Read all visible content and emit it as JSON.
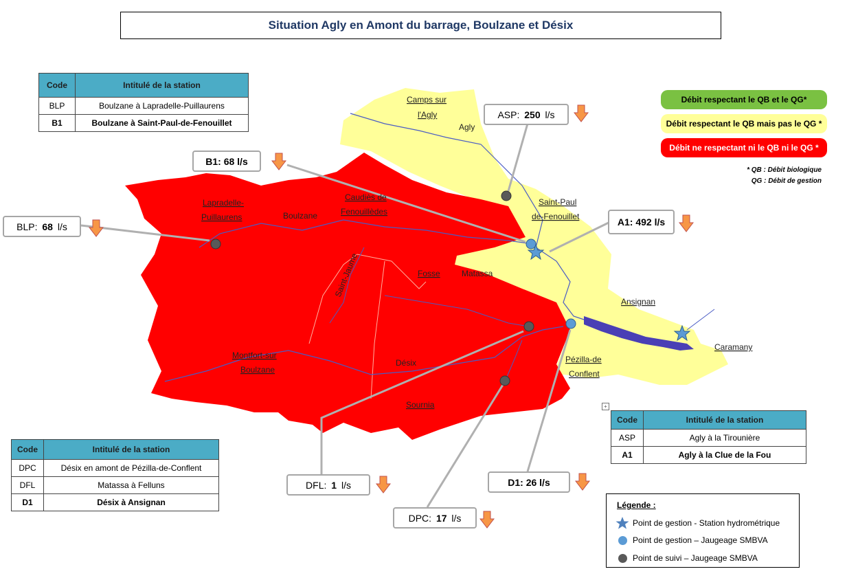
{
  "title": "Situation Agly en Amont du barrage, Boulzane et Désix",
  "colors": {
    "compliant": "#7ac142",
    "biological_only": "#ffff99",
    "non_compliant": "#ff0000",
    "table_header": "#4bacc6",
    "river": "#4a5cc4",
    "gestion_point": "#5b9bd5",
    "suivi_point": "#595959",
    "trend_arrow": "#f79646"
  },
  "table_boulzane": {
    "headers": [
      "Code",
      "Intitulé de la station"
    ],
    "rows": [
      {
        "code": "BLP",
        "name": "Boulzane à Lapradelle-Puillaurens"
      },
      {
        "code": "B1",
        "name": "Boulzane à Saint-Paul-de-Fenouillet"
      }
    ]
  },
  "table_desix": {
    "headers": [
      "Code",
      "Intitulé de la station"
    ],
    "rows": [
      {
        "code": "DPC",
        "name": "Désix en amont de Pézilla-de-Conflent"
      },
      {
        "code": "DFL",
        "name": "Matassa à Felluns"
      },
      {
        "code": "D1",
        "name": "Désix à Ansignan"
      }
    ]
  },
  "table_agly": {
    "headers": [
      "Code",
      "Intitulé de la station"
    ],
    "rows": [
      {
        "code": "ASP",
        "name": "Agly à la Tirounière"
      },
      {
        "code": "A1",
        "name": "Agly à la Clue de la Fou"
      }
    ]
  },
  "callouts": {
    "asp": {
      "label": "ASP:",
      "value": "250",
      "unit": "l/s",
      "trend": "down"
    },
    "b1": {
      "label": "B1:",
      "value": "68",
      "unit": "l/s",
      "trend": "down"
    },
    "blp": {
      "label": "BLP:",
      "value": "68",
      "unit": "l/s",
      "trend": "down"
    },
    "a1": {
      "label": "A1:",
      "value": "492",
      "unit": "l/s",
      "trend": "down"
    },
    "dfl": {
      "label": "DFL:",
      "value": "1",
      "unit": "l/s",
      "trend": "down"
    },
    "d1": {
      "label": "D1:",
      "value": "26",
      "unit": "l/s",
      "trend": "down"
    },
    "dpc": {
      "label": "DPC:",
      "value": "17",
      "unit": "l/s",
      "trend": "down"
    }
  },
  "status_legend": {
    "green": "Débit respectant le QB et le QG*",
    "yellow": "Débit respectant le QB mais pas le QG *",
    "red": "Débit ne respectant ni le QB ni le QG *"
  },
  "notes": {
    "qb": "* QB : Débit biologique",
    "qg": "QG : Débit de gestion"
  },
  "legend": {
    "title": "Légende :",
    "items": [
      {
        "icon": "star",
        "label": "Point de gestion - Station hydrométrique"
      },
      {
        "icon": "blue-dot",
        "label": "Point de gestion – Jaugeage SMBVA"
      },
      {
        "icon": "grey-dot",
        "label": "Point de suivi – Jaugeage SMBVA"
      }
    ]
  },
  "place_names": {
    "camps": [
      "Camps sur",
      "l'Agly"
    ],
    "agly": "Agly",
    "lapradelle": [
      "Lapradelle-",
      "Puillaurens"
    ],
    "boulzane": "Boulzane",
    "caudies": [
      "Caudiès de",
      "Fenouillèdes"
    ],
    "saint_paul": [
      "Saint-Paul",
      "de-Fenouillet"
    ],
    "saint_jaume": "Saint-Jaume",
    "fosse": "Fosse",
    "matassa": "Matassa",
    "ansignan": "Ansignan",
    "caramany": "Caramany",
    "montfort": [
      "Montfort-sur",
      "Boulzane"
    ],
    "desix": "Désix",
    "pezilla": [
      "Pézilla-de",
      "Conflent"
    ],
    "sournia": "Sournia"
  }
}
